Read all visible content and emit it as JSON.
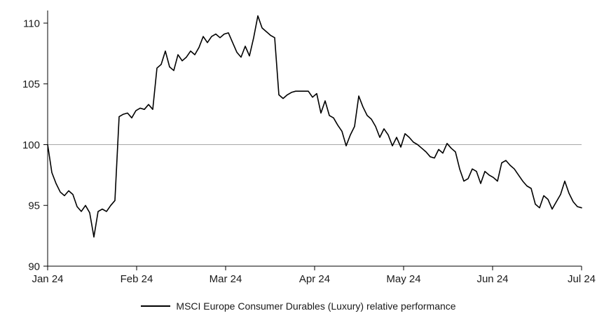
{
  "chart_data": {
    "type": "line",
    "legend_label": "MSCI Europe Consumer Durables (Luxury) relative performance",
    "x_tick_labels": [
      "Jan 24",
      "Feb 24",
      "Mar 24",
      "Apr 24",
      "May 24",
      "Jun 24",
      "Jul 24"
    ],
    "yticks": [
      90,
      95,
      100,
      105,
      110
    ],
    "ylim": [
      90,
      110
    ],
    "reference_line": 100,
    "grid": "off",
    "legend_position": "bottom-center",
    "series": [
      {
        "name": "MSCI Europe Consumer Durables (Luxury) relative performance",
        "values": [
          100.0,
          97.7,
          96.8,
          96.1,
          95.8,
          96.2,
          95.9,
          94.9,
          94.5,
          95.0,
          94.4,
          92.4,
          94.5,
          94.7,
          94.5,
          95.0,
          95.4,
          102.3,
          102.5,
          102.6,
          102.2,
          102.8,
          103.0,
          102.9,
          103.3,
          102.9,
          106.3,
          106.6,
          107.7,
          106.4,
          106.1,
          107.4,
          106.9,
          107.2,
          107.7,
          107.4,
          108.0,
          108.9,
          108.4,
          108.9,
          109.1,
          108.8,
          109.1,
          109.2,
          108.4,
          107.6,
          107.2,
          108.1,
          107.3,
          108.8,
          110.6,
          109.6,
          109.3,
          109.0,
          108.8,
          104.1,
          103.8,
          104.1,
          104.3,
          104.4,
          104.4,
          104.4,
          104.4,
          103.9,
          104.2,
          102.6,
          103.6,
          102.4,
          102.2,
          101.6,
          101.1,
          99.9,
          100.8,
          101.5,
          104.0,
          103.1,
          102.4,
          102.1,
          101.5,
          100.6,
          101.3,
          100.8,
          99.9,
          100.6,
          99.8,
          100.9,
          100.6,
          100.2,
          100.0,
          99.7,
          99.4,
          99.0,
          98.9,
          99.6,
          99.3,
          100.1,
          99.7,
          99.4,
          98.0,
          97.0,
          97.2,
          98.0,
          97.8,
          96.8,
          97.8,
          97.5,
          97.3,
          97.0,
          98.5,
          98.7,
          98.3,
          98.0,
          97.5,
          97.0,
          96.6,
          96.4,
          95.1,
          94.8,
          95.8,
          95.5,
          94.7,
          95.3,
          95.9,
          97.0,
          96.0,
          95.3,
          94.9,
          94.8
        ]
      }
    ],
    "colors": {
      "line": "#000000",
      "reference": "#a6a6a6",
      "axis": "#000000",
      "text": "#1a1a1a"
    }
  }
}
